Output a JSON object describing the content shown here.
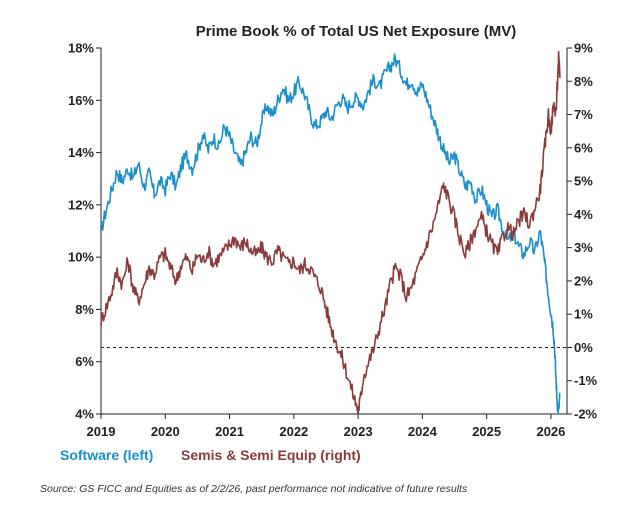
{
  "chart_data": {
    "type": "line",
    "title": "Prime Book % of Total US Net Exposure (MV)",
    "source": "Source: GS FICC and Equities as of 2/2/26, past performance not indicative of future results",
    "x_ticks": [
      "2019",
      "2020",
      "2021",
      "2022",
      "2023",
      "2024",
      "2025",
      "2026"
    ],
    "xlim": [
      2019.0,
      2026.25
    ],
    "y_left": {
      "ticks": [
        "4%",
        "6%",
        "8%",
        "10%",
        "12%",
        "14%",
        "16%",
        "18%"
      ],
      "tick_values": [
        4,
        6,
        8,
        10,
        12,
        14,
        16,
        18
      ],
      "ylim": [
        4,
        18
      ]
    },
    "y_right": {
      "ticks": [
        "-2%",
        "-1%",
        "0%",
        "1%",
        "2%",
        "3%",
        "4%",
        "5%",
        "6%",
        "7%",
        "8%",
        "9%"
      ],
      "tick_values": [
        -2,
        -1,
        0,
        1,
        2,
        3,
        4,
        5,
        6,
        7,
        8,
        9
      ],
      "ylim": [
        -2,
        9
      ]
    },
    "reference_line": {
      "axis": "right",
      "value": 0,
      "style": "dashed"
    },
    "series": [
      {
        "name": "Software (left)",
        "axis": "left",
        "color": "#1a8fca",
        "points": [
          [
            2019.0,
            11.0
          ],
          [
            2019.08,
            11.8
          ],
          [
            2019.17,
            12.6
          ],
          [
            2019.25,
            13.3
          ],
          [
            2019.33,
            12.9
          ],
          [
            2019.42,
            13.4
          ],
          [
            2019.5,
            13.0
          ],
          [
            2019.58,
            13.6
          ],
          [
            2019.67,
            12.7
          ],
          [
            2019.75,
            13.2
          ],
          [
            2019.83,
            12.4
          ],
          [
            2019.92,
            12.9
          ],
          [
            2020.0,
            12.6
          ],
          [
            2020.08,
            13.2
          ],
          [
            2020.17,
            12.7
          ],
          [
            2020.25,
            13.5
          ],
          [
            2020.33,
            13.9
          ],
          [
            2020.42,
            13.4
          ],
          [
            2020.5,
            14.0
          ],
          [
            2020.58,
            14.7
          ],
          [
            2020.67,
            14.1
          ],
          [
            2020.75,
            14.6
          ],
          [
            2020.83,
            14.2
          ],
          [
            2020.92,
            15.0
          ],
          [
            2021.0,
            14.6
          ],
          [
            2021.08,
            14.0
          ],
          [
            2021.17,
            13.5
          ],
          [
            2021.25,
            14.0
          ],
          [
            2021.33,
            14.6
          ],
          [
            2021.42,
            14.3
          ],
          [
            2021.5,
            15.2
          ],
          [
            2021.58,
            15.8
          ],
          [
            2021.67,
            15.4
          ],
          [
            2021.75,
            16.0
          ],
          [
            2021.83,
            16.5
          ],
          [
            2021.92,
            16.0
          ],
          [
            2022.0,
            16.3
          ],
          [
            2022.08,
            16.7
          ],
          [
            2022.17,
            16.2
          ],
          [
            2022.25,
            15.5
          ],
          [
            2022.33,
            15.0
          ],
          [
            2022.42,
            15.2
          ],
          [
            2022.5,
            15.6
          ],
          [
            2022.58,
            15.3
          ],
          [
            2022.67,
            15.8
          ],
          [
            2022.75,
            16.1
          ],
          [
            2022.83,
            15.7
          ],
          [
            2022.92,
            16.0
          ],
          [
            2023.0,
            16.1
          ],
          [
            2023.08,
            15.8
          ],
          [
            2023.17,
            16.4
          ],
          [
            2023.25,
            16.8
          ],
          [
            2023.33,
            16.5
          ],
          [
            2023.42,
            17.0
          ],
          [
            2023.5,
            17.3
          ],
          [
            2023.58,
            17.6
          ],
          [
            2023.67,
            17.1
          ],
          [
            2023.75,
            16.6
          ],
          [
            2023.83,
            16.8
          ],
          [
            2023.92,
            16.3
          ],
          [
            2024.0,
            16.6
          ],
          [
            2024.08,
            16.0
          ],
          [
            2024.17,
            15.3
          ],
          [
            2024.25,
            14.7
          ],
          [
            2024.33,
            14.1
          ],
          [
            2024.42,
            13.6
          ],
          [
            2024.5,
            13.9
          ],
          [
            2024.58,
            13.3
          ],
          [
            2024.67,
            12.7
          ],
          [
            2024.75,
            12.9
          ],
          [
            2024.83,
            12.2
          ],
          [
            2024.92,
            12.6
          ],
          [
            2025.0,
            12.0
          ],
          [
            2025.08,
            11.5
          ],
          [
            2025.17,
            11.8
          ],
          [
            2025.25,
            11.1
          ],
          [
            2025.33,
            10.6
          ],
          [
            2025.42,
            10.9
          ],
          [
            2025.5,
            10.4
          ],
          [
            2025.58,
            10.1
          ],
          [
            2025.67,
            10.6
          ],
          [
            2025.75,
            10.2
          ],
          [
            2025.83,
            11.0
          ],
          [
            2025.88,
            10.2
          ],
          [
            2025.92,
            9.4
          ],
          [
            2025.96,
            8.6
          ],
          [
            2026.0,
            7.9
          ],
          [
            2026.04,
            7.2
          ],
          [
            2026.06,
            6.4
          ],
          [
            2026.08,
            5.3
          ],
          [
            2026.1,
            4.4
          ],
          [
            2026.12,
            4.1
          ],
          [
            2026.14,
            4.8
          ]
        ]
      },
      {
        "name": "Semis & Semi Equip (right)",
        "axis": "right",
        "color": "#8b3a3a",
        "points": [
          [
            2019.0,
            0.8
          ],
          [
            2019.08,
            1.2
          ],
          [
            2019.17,
            1.7
          ],
          [
            2019.25,
            2.3
          ],
          [
            2019.33,
            1.9
          ],
          [
            2019.42,
            2.6
          ],
          [
            2019.5,
            1.8
          ],
          [
            2019.58,
            1.4
          ],
          [
            2019.67,
            1.9
          ],
          [
            2019.75,
            2.4
          ],
          [
            2019.83,
            2.2
          ],
          [
            2019.92,
            2.7
          ],
          [
            2020.0,
            2.8
          ],
          [
            2020.08,
            2.4
          ],
          [
            2020.17,
            2.0
          ],
          [
            2020.25,
            2.5
          ],
          [
            2020.33,
            2.7
          ],
          [
            2020.42,
            2.3
          ],
          [
            2020.5,
            2.8
          ],
          [
            2020.58,
            2.6
          ],
          [
            2020.67,
            2.9
          ],
          [
            2020.75,
            2.5
          ],
          [
            2020.83,
            2.7
          ],
          [
            2020.92,
            2.9
          ],
          [
            2021.0,
            3.1
          ],
          [
            2021.08,
            3.3
          ],
          [
            2021.17,
            3.0
          ],
          [
            2021.25,
            3.2
          ],
          [
            2021.33,
            2.9
          ],
          [
            2021.42,
            2.8
          ],
          [
            2021.5,
            3.0
          ],
          [
            2021.58,
            2.7
          ],
          [
            2021.67,
            2.6
          ],
          [
            2021.75,
            2.9
          ],
          [
            2021.83,
            2.7
          ],
          [
            2021.92,
            2.5
          ],
          [
            2022.0,
            2.6
          ],
          [
            2022.08,
            2.3
          ],
          [
            2022.17,
            2.5
          ],
          [
            2022.25,
            2.4
          ],
          [
            2022.33,
            2.1
          ],
          [
            2022.42,
            1.8
          ],
          [
            2022.5,
            1.2
          ],
          [
            2022.58,
            0.6
          ],
          [
            2022.67,
            0.1
          ],
          [
            2022.75,
            -0.3
          ],
          [
            2022.83,
            -0.8
          ],
          [
            2022.92,
            -1.4
          ],
          [
            2023.0,
            -1.9
          ],
          [
            2023.04,
            -1.5
          ],
          [
            2023.08,
            -0.9
          ],
          [
            2023.17,
            -0.4
          ],
          [
            2023.25,
            0.0
          ],
          [
            2023.33,
            0.6
          ],
          [
            2023.42,
            1.2
          ],
          [
            2023.5,
            1.9
          ],
          [
            2023.58,
            2.4
          ],
          [
            2023.67,
            2.1
          ],
          [
            2023.75,
            1.5
          ],
          [
            2023.83,
            1.8
          ],
          [
            2023.92,
            2.3
          ],
          [
            2024.0,
            2.7
          ],
          [
            2024.08,
            3.2
          ],
          [
            2024.17,
            3.7
          ],
          [
            2024.25,
            4.3
          ],
          [
            2024.33,
            4.9
          ],
          [
            2024.42,
            4.4
          ],
          [
            2024.5,
            3.9
          ],
          [
            2024.58,
            3.3
          ],
          [
            2024.67,
            2.8
          ],
          [
            2024.75,
            3.2
          ],
          [
            2024.83,
            3.6
          ],
          [
            2024.92,
            3.9
          ],
          [
            2025.0,
            3.5
          ],
          [
            2025.08,
            3.1
          ],
          [
            2025.17,
            2.8
          ],
          [
            2025.25,
            3.3
          ],
          [
            2025.33,
            3.6
          ],
          [
            2025.42,
            3.4
          ],
          [
            2025.5,
            3.8
          ],
          [
            2025.58,
            4.0
          ],
          [
            2025.67,
            3.7
          ],
          [
            2025.75,
            4.2
          ],
          [
            2025.83,
            4.7
          ],
          [
            2025.88,
            5.6
          ],
          [
            2025.92,
            6.3
          ],
          [
            2025.96,
            7.0
          ],
          [
            2026.0,
            6.5
          ],
          [
            2026.04,
            7.3
          ],
          [
            2026.08,
            7.1
          ],
          [
            2026.1,
            7.9
          ],
          [
            2026.12,
            8.7
          ],
          [
            2026.14,
            8.1
          ]
        ]
      }
    ]
  }
}
